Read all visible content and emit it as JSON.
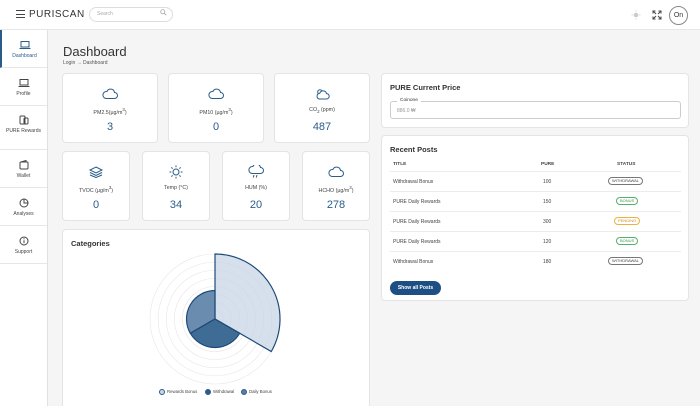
{
  "app": {
    "brand": "PURISCAN",
    "search_placeholder": "Search",
    "avatar_initials": "On"
  },
  "sidebar": {
    "items": [
      {
        "label": "Dashboard",
        "icon": "laptop-icon"
      },
      {
        "label": "Profile",
        "icon": "laptop-icon"
      },
      {
        "label": "PURE Rewards",
        "icon": "coins-icon"
      },
      {
        "label": "Wallet",
        "icon": "wallet-icon"
      },
      {
        "label": "Analyses",
        "icon": "pie-chart-icon"
      },
      {
        "label": "Support",
        "icon": "info-icon"
      }
    ]
  },
  "page": {
    "title": "Dashboard",
    "breadcrumb": "Login → Dashboard"
  },
  "stats": [
    {
      "label_pre": "PM2.5(µg/m",
      "label_sup": "3",
      "label_post": ")",
      "value": "3",
      "icon": "cloud-icon"
    },
    {
      "label_pre": "PM10 (µg/m",
      "label_sup": "3",
      "label_post": ")",
      "value": "0",
      "icon": "cloud-icon"
    },
    {
      "label_pre": "CO",
      "label_sub": "2",
      "label_post": " (ppm)",
      "value": "487",
      "icon": "cloud-sun-icon"
    },
    {
      "label_pre": "TVOC (µg/m",
      "label_sup": "3",
      "label_post": ")",
      "value": "0",
      "icon": "layers-icon"
    },
    {
      "label_pre": "Temp (°C)",
      "value": "34",
      "icon": "sun-icon"
    },
    {
      "label_pre": "HUM (%)",
      "value": "20",
      "icon": "cloud-rain-icon"
    },
    {
      "label_pre": "HCHO (µg/m",
      "label_sup": "3",
      "label_post": ")",
      "value": "278",
      "icon": "cloud-icon"
    }
  ],
  "categories": {
    "title": "Categories",
    "legend": [
      "Rewards Bonus",
      "Withdrawal",
      "Daily Bonus"
    ]
  },
  "chart_data": {
    "type": "polarArea",
    "categories": [
      "Rewards Bonus",
      "Withdrawal",
      "Daily Bonus"
    ],
    "values": [
      10,
      5,
      5
    ],
    "colors": [
      "#c8d6e5",
      "#2a5c8a",
      "#5a7fa6"
    ]
  },
  "price": {
    "title": "PURE Current Price",
    "field_label": "Coinone",
    "field_value": "886.0 ₩"
  },
  "posts": {
    "title": "Recent Posts",
    "headers": [
      "TITLE",
      "PURE",
      "STATUS"
    ],
    "rows": [
      {
        "title": "Withdrawal Bonus",
        "pure": "100",
        "status": "WITHDRAWAL",
        "kind": "withdrawal"
      },
      {
        "title": "PURE Daily Rewards",
        "pure": "150",
        "status": "BONUS",
        "kind": "bonus"
      },
      {
        "title": "PURE Daily Rewards",
        "pure": "300",
        "status": "PENDING",
        "kind": "pending"
      },
      {
        "title": "PURE Daily Rewards",
        "pure": "120",
        "status": "BONUS",
        "kind": "bonus"
      },
      {
        "title": "Withdrawal Bonus",
        "pure": "180",
        "status": "WITHDRAWAL",
        "kind": "withdrawal"
      }
    ],
    "button": "Show all Posts"
  }
}
